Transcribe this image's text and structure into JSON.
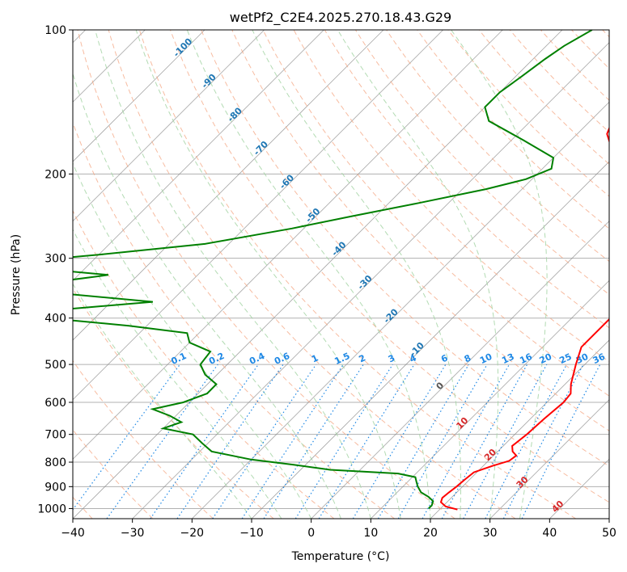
{
  "chart_data": {
    "type": "line",
    "title": "wetPf2_C2E4.2025.270.18.43.G29",
    "xlabel": "Temperature (°C)",
    "ylabel": "Pressure (hPa)",
    "xlim": [
      -40,
      50
    ],
    "ylim": [
      1050,
      100
    ],
    "y_scale": "log",
    "grid": true,
    "x_ticks": [
      "−40",
      "−30",
      "−20",
      "−10",
      "0",
      "10",
      "20",
      "30",
      "40",
      "50"
    ],
    "y_ticks": [
      "100",
      "200",
      "300",
      "400",
      "500",
      "600",
      "700",
      "800",
      "900",
      "1000"
    ],
    "colors": {
      "temperature": "#ff0000",
      "dewpoint": "#008000",
      "isotherm": "#888888",
      "dry_adiabat": "#f4a582",
      "moist_adiabat": "#a6d5a6",
      "mixing_ratio": "#1e88e5",
      "dry_adiabat_label": "#d62728",
      "isotherm_label": "#1f77b4"
    },
    "isotherm_labels": [
      "-100",
      "-90",
      "-80",
      "-70",
      "-60",
      "-50",
      "-40",
      "-30",
      "-20",
      "-10",
      "0",
      "10",
      "20",
      "30",
      "40"
    ],
    "mixing_ratio_labels": [
      "0.1",
      "0.2",
      "0.4",
      "0.6",
      "1",
      "1.5",
      "2",
      "3",
      "4",
      "6",
      "8",
      "10",
      "13",
      "16",
      "20",
      "25",
      "30",
      "36"
    ],
    "mixing_ratio_values": [
      0.1,
      0.2,
      0.4,
      0.6,
      1,
      1.5,
      2,
      3,
      4,
      6,
      8,
      10,
      13,
      16,
      20,
      25,
      30,
      36
    ],
    "temperature": [
      [
        1005,
        23.0
      ],
      [
        990,
        20.5
      ],
      [
        970,
        19.0
      ],
      [
        950,
        18.5
      ],
      [
        925,
        18.7
      ],
      [
        900,
        19.0
      ],
      [
        870,
        19.2
      ],
      [
        840,
        19.5
      ],
      [
        815,
        21.5
      ],
      [
        795,
        23.5
      ],
      [
        775,
        23.8
      ],
      [
        760,
        22.5
      ],
      [
        740,
        21.5
      ],
      [
        700,
        22.0
      ],
      [
        650,
        22.3
      ],
      [
        600,
        22.8
      ],
      [
        575,
        22.5
      ],
      [
        550,
        21.0
      ],
      [
        500,
        18.5
      ],
      [
        460,
        16.5
      ],
      [
        420,
        16.5
      ],
      [
        400,
        16.5
      ],
      [
        380,
        15.5
      ],
      [
        350,
        12.5
      ],
      [
        300,
        7.0
      ],
      [
        250,
        0.5
      ],
      [
        220,
        -4.5
      ],
      [
        200,
        -7.5
      ],
      [
        180,
        -11.0
      ],
      [
        165,
        -15.0
      ],
      [
        150,
        -17.0
      ],
      [
        140,
        -18.0
      ],
      [
        125,
        -20.5
      ],
      [
        115,
        -23.0
      ],
      [
        105,
        -26.5
      ],
      [
        100,
        -28.0
      ]
    ],
    "dewpoint": [
      [
        1000,
        18.0
      ],
      [
        985,
        18.0
      ],
      [
        965,
        17.5
      ],
      [
        945,
        16.0
      ],
      [
        925,
        14.0
      ],
      [
        900,
        12.5
      ],
      [
        880,
        11.5
      ],
      [
        860,
        10.5
      ],
      [
        845,
        7.0
      ],
      [
        830,
        -5.0
      ],
      [
        810,
        -12.0
      ],
      [
        790,
        -20.0
      ],
      [
        760,
        -28.0
      ],
      [
        730,
        -31.0
      ],
      [
        700,
        -34.0
      ],
      [
        680,
        -40.0
      ],
      [
        660,
        -38.0
      ],
      [
        640,
        -41.0
      ],
      [
        620,
        -45.0
      ],
      [
        600,
        -41.0
      ],
      [
        575,
        -38.5
      ],
      [
        550,
        -38.5
      ],
      [
        525,
        -42.0
      ],
      [
        500,
        -44.5
      ],
      [
        470,
        -45.0
      ],
      [
        450,
        -50.0
      ],
      [
        430,
        -52.0
      ],
      [
        415,
        -63.0
      ],
      [
        405,
        -73.0
      ],
      [
        395,
        -90.0
      ],
      [
        385,
        -78.0
      ],
      [
        370,
        -63.0
      ],
      [
        355,
        -80.0
      ],
      [
        345,
        -97.0
      ],
      [
        335,
        -82.0
      ],
      [
        325,
        -75.0
      ],
      [
        315,
        -88.0
      ],
      [
        305,
        -92.0
      ],
      [
        295,
        -80.0
      ],
      [
        280,
        -64.0
      ],
      [
        260,
        -52.0
      ],
      [
        245,
        -44.0
      ],
      [
        230,
        -35.0
      ],
      [
        215,
        -26.0
      ],
      [
        205,
        -21.0
      ],
      [
        195,
        -18.5
      ],
      [
        185,
        -20.0
      ],
      [
        170,
        -28.0
      ],
      [
        155,
        -37.0
      ],
      [
        145,
        -40.0
      ],
      [
        135,
        -40.0
      ],
      [
        125,
        -39.0
      ],
      [
        115,
        -38.0
      ],
      [
        108,
        -37.0
      ],
      [
        100,
        -35.0
      ]
    ]
  }
}
